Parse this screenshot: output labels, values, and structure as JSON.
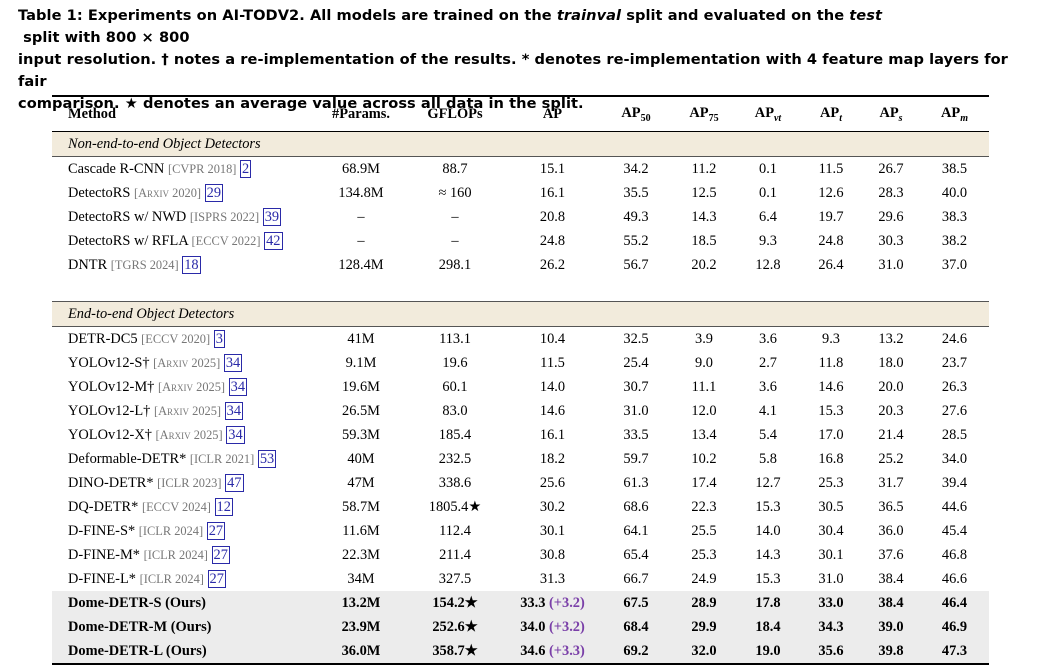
{
  "caption": {
    "line1_a": "Table 1: Experiments on AI-TODV2. All models are trained on the ",
    "line1_b": "trainval",
    "line1_c": " split and evaluated on the ",
    "line1_d": "test",
    "line1_e": " split with 800 × 800",
    "line2": "input resolution. † notes a re-implementation of the results. * denotes re-implementation with 4 feature map layers for fair",
    "line3": "comparison. ★ denotes an average value across all data in the split."
  },
  "header": {
    "method": "Method",
    "params": "#Params.",
    "gflops": "GFLOPs",
    "ap": "AP",
    "ap50": "AP",
    "ap50_sub": "50",
    "ap75": "AP",
    "ap75_sub": "75",
    "apvt": "AP",
    "apvt_sub": "vt",
    "apt": "AP",
    "apt_sub": "t",
    "aps": "AP",
    "aps_sub": "s",
    "apm": "AP",
    "apm_sub": "m"
  },
  "sections": [
    {
      "title": "Non-end-to-end Object Detectors",
      "rows": [
        {
          "name": "Cascade R-CNN",
          "venue": "[CVPR 2018]",
          "ref": "2",
          "params": "68.9M",
          "gflops": "88.7",
          "ap": "15.1",
          "ap50": "34.2",
          "ap75": "11.2",
          "apvt": "0.1",
          "apt": "11.5",
          "aps": "26.7",
          "apm": "38.5"
        },
        {
          "name": "DetectoRS",
          "venue": "[Arxiv 2020]",
          "ref": "29",
          "params": "134.8M",
          "gflops": "≈ 160",
          "ap": "16.1",
          "ap50": "35.5",
          "ap75": "12.5",
          "apvt": "0.1",
          "apt": "12.6",
          "aps": "28.3",
          "apm": "40.0"
        },
        {
          "name": "DetectoRS w/ NWD",
          "venue": "[ISPRS 2022]",
          "ref": "39",
          "params": "–",
          "gflops": "–",
          "ap": "20.8",
          "ap50": "49.3",
          "ap75": "14.3",
          "apvt": "6.4",
          "apt": "19.7",
          "aps": "29.6",
          "apm": "38.3"
        },
        {
          "name": "DetectoRS w/ RFLA",
          "venue": "[ECCV 2022]",
          "ref": "42",
          "params": "–",
          "gflops": "–",
          "ap": "24.8",
          "ap50": "55.2",
          "ap75": "18.5",
          "apvt": "9.3",
          "apt": "24.8",
          "aps": "30.3",
          "apm": "38.2"
        },
        {
          "name": "DNTR",
          "venue": "[TGRS 2024]",
          "ref": "18",
          "params": "128.4M",
          "gflops": "298.1",
          "ap": "26.2",
          "ap50": "56.7",
          "ap75": "20.2",
          "apvt": "12.8",
          "apt": "26.4",
          "aps": "31.0",
          "apm": "37.0"
        }
      ]
    },
    {
      "title": "End-to-end Object Detectors",
      "rows": [
        {
          "name": "DETR-DC5",
          "venue": "[ECCV 2020]",
          "ref": "3",
          "params": "41M",
          "gflops": "113.1",
          "ap": "10.4",
          "ap50": "32.5",
          "ap75": "3.9",
          "apvt": "3.6",
          "apt": "9.3",
          "aps": "13.2",
          "apm": "24.6"
        },
        {
          "name": "YOLOv12-S†",
          "venue": "[Arxiv 2025]",
          "ref": "34",
          "params": "9.1M",
          "gflops": "19.6",
          "ap": "11.5",
          "ap50": "25.4",
          "ap75": "9.0",
          "apvt": "2.7",
          "apt": "11.8",
          "aps": "18.0",
          "apm": "23.7"
        },
        {
          "name": "YOLOv12-M†",
          "venue": "[Arxiv 2025]",
          "ref": "34",
          "params": "19.6M",
          "gflops": "60.1",
          "ap": "14.0",
          "ap50": "30.7",
          "ap75": "11.1",
          "apvt": "3.6",
          "apt": "14.6",
          "aps": "20.0",
          "apm": "26.3"
        },
        {
          "name": "YOLOv12-L†",
          "venue": "[Arxiv 2025]",
          "ref": "34",
          "params": "26.5M",
          "gflops": "83.0",
          "ap": "14.6",
          "ap50": "31.0",
          "ap75": "12.0",
          "apvt": "4.1",
          "apt": "15.3",
          "aps": "20.3",
          "apm": "27.6"
        },
        {
          "name": "YOLOv12-X†",
          "venue": "[Arxiv 2025]",
          "ref": "34",
          "params": "59.3M",
          "gflops": "185.4",
          "ap": "16.1",
          "ap50": "33.5",
          "ap75": "13.4",
          "apvt": "5.4",
          "apt": "17.0",
          "aps": "21.4",
          "apm": "28.5"
        },
        {
          "name": "Deformable-DETR*",
          "venue": "[ICLR 2021]",
          "ref": "53",
          "params": "40M",
          "gflops": "232.5",
          "ap": "18.2",
          "ap50": "59.7",
          "ap75": "10.2",
          "apvt": "5.8",
          "apt": "16.8",
          "aps": "25.2",
          "apm": "34.0"
        },
        {
          "name": "DINO-DETR*",
          "venue": "[ICLR 2023]",
          "ref": "47",
          "params": "47M",
          "gflops": "338.6",
          "ap": "25.6",
          "ap50": "61.3",
          "ap75": "17.4",
          "apvt": "12.7",
          "apt": "25.3",
          "aps": "31.7",
          "apm": "39.4"
        },
        {
          "name": "DQ-DETR*",
          "venue": "[ECCV 2024]",
          "ref": "12",
          "params": "58.7M",
          "gflops": "1805.4★",
          "ap": "30.2",
          "ap50": "68.6",
          "ap75": "22.3",
          "apvt": "15.3",
          "apt": "30.5",
          "aps": "36.5",
          "apm": "44.6"
        },
        {
          "name": "D-FINE-S*",
          "venue": "[ICLR 2024]",
          "ref": "27",
          "params": "11.6M",
          "gflops": "112.4",
          "ap": "30.1",
          "ap50": "64.1",
          "ap75": "25.5",
          "apvt": "14.0",
          "apt": "30.4",
          "aps": "36.0",
          "apm": "45.4"
        },
        {
          "name": "D-FINE-M*",
          "venue": "[ICLR 2024]",
          "ref": "27",
          "params": "22.3M",
          "gflops": "211.4",
          "ap": "30.8",
          "ap50": "65.4",
          "ap75": "25.3",
          "apvt": "14.3",
          "apt": "30.1",
          "aps": "37.6",
          "apm": "46.8"
        },
        {
          "name": "D-FINE-L*",
          "venue": "[ICLR 2024]",
          "ref": "27",
          "params": "34M",
          "gflops": "327.5",
          "ap": "31.3",
          "ap50": "66.7",
          "ap75": "24.9",
          "apvt": "15.3",
          "apt": "31.0",
          "aps": "38.4",
          "apm": "46.6"
        }
      ]
    }
  ],
  "ours": [
    {
      "name": "Dome-DETR-S (Ours)",
      "params": "13.2M",
      "gflops": "154.2★",
      "ap": "33.3",
      "gain": "(+3.2)",
      "ap50": "67.5",
      "ap75": "28.9",
      "apvt": "17.8",
      "apt": "33.0",
      "aps": "38.4",
      "apm": "46.4"
    },
    {
      "name": "Dome-DETR-M (Ours)",
      "params": "23.9M",
      "gflops": "252.6★",
      "ap": "34.0",
      "gain": "(+3.2)",
      "ap50": "68.4",
      "ap75": "29.9",
      "apvt": "18.4",
      "apt": "34.3",
      "aps": "39.0",
      "apm": "46.9"
    },
    {
      "name": "Dome-DETR-L (Ours)",
      "params": "36.0M",
      "gflops": "358.7★",
      "ap": "34.6",
      "gain": "(+3.3)",
      "ap50": "69.2",
      "ap75": "32.0",
      "apvt": "19.0",
      "apt": "35.6",
      "aps": "39.8",
      "apm": "47.3"
    }
  ]
}
